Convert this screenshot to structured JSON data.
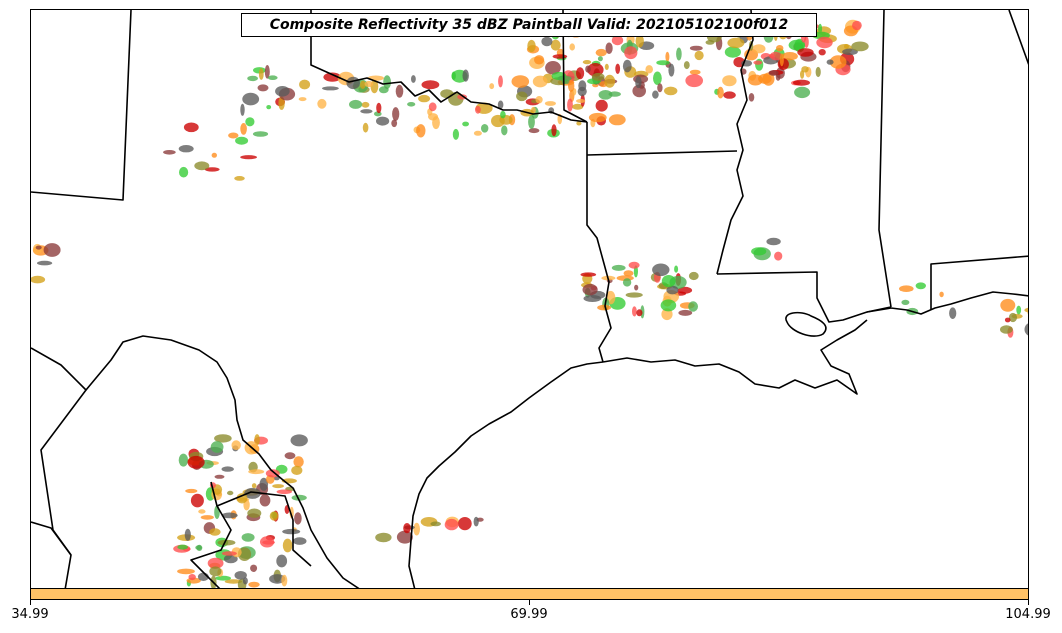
{
  "title": "Composite Reflectivity 35 dBZ Paintball Valid: 202105102100f012",
  "colorbar": {
    "color": "#ffc266",
    "tick_labels": [
      "34.99",
      "69.99",
      "104.99"
    ]
  },
  "member_colors": [
    "#ff8c1a",
    "#ffb347",
    "#ff4d4d",
    "#cc0000",
    "#8b3a3a",
    "#5a5a5a",
    "#4caf50",
    "#33cc33",
    "#8a8a2a",
    "#d4a017"
  ],
  "map": {
    "region": "Texas, Louisiana, and the northern Gulf of Mexico",
    "boundary_color": "#000000",
    "background_color": "#ffffff"
  }
}
